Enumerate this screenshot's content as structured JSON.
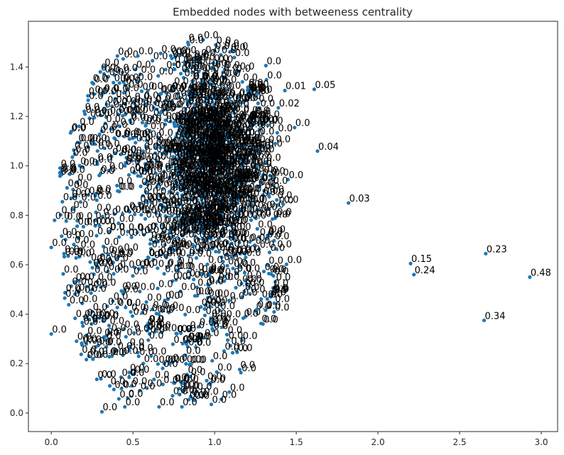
{
  "chart_data": {
    "type": "scatter",
    "title": "Embedded nodes with betweeness centrality",
    "xlabel": "",
    "ylabel": "",
    "xlim": [
      -0.14,
      3.1
    ],
    "ylim": [
      -0.075,
      1.585
    ],
    "x_ticks": [
      "0.0",
      "0.5",
      "1.0",
      "1.5",
      "2.0",
      "2.5",
      "3.0"
    ],
    "y_ticks": [
      "0.0",
      "0.2",
      "0.4",
      "0.6",
      "0.8",
      "1.0",
      "1.2",
      "1.4"
    ],
    "grid": false,
    "legend": "none",
    "point_color": "#1f77b4",
    "labeled_points": [
      {
        "x": 0.93,
        "y": 1.51,
        "label": "0.0"
      },
      {
        "x": 0.53,
        "y": 1.445,
        "label": "0.0"
      },
      {
        "x": 0.67,
        "y": 1.455,
        "label": "0.0"
      },
      {
        "x": 0.84,
        "y": 1.49,
        "label": "0.0"
      },
      {
        "x": 1.17,
        "y": 1.34,
        "label": "0.0"
      },
      {
        "x": 1.43,
        "y": 1.305,
        "label": "0.01"
      },
      {
        "x": 1.61,
        "y": 1.31,
        "label": "0.05"
      },
      {
        "x": 1.26,
        "y": 1.29,
        "label": "0.0"
      },
      {
        "x": 1.39,
        "y": 1.235,
        "label": "0.02"
      },
      {
        "x": 1.49,
        "y": 1.155,
        "label": "0.0"
      },
      {
        "x": 1.63,
        "y": 1.06,
        "label": "0.04"
      },
      {
        "x": 1.82,
        "y": 0.85,
        "label": "0.03"
      },
      {
        "x": 1.42,
        "y": 0.845,
        "label": "0.0"
      },
      {
        "x": 2.66,
        "y": 0.645,
        "label": "0.23"
      },
      {
        "x": 2.2,
        "y": 0.605,
        "label": "0.15"
      },
      {
        "x": 2.22,
        "y": 0.56,
        "label": "0.24"
      },
      {
        "x": 2.93,
        "y": 0.55,
        "label": "0.48"
      },
      {
        "x": 2.65,
        "y": 0.375,
        "label": "0.34"
      },
      {
        "x": 1.36,
        "y": 0.555,
        "label": "0.0"
      },
      {
        "x": 1.26,
        "y": 0.42,
        "label": "0.0"
      },
      {
        "x": 0.31,
        "y": 0.005,
        "label": "0.0"
      },
      {
        "x": 0.45,
        "y": 0.025,
        "label": "0.0"
      },
      {
        "x": 0.66,
        "y": 0.025,
        "label": "0.0"
      },
      {
        "x": 0.8,
        "y": 0.025,
        "label": "0.0"
      },
      {
        "x": 0.98,
        "y": 0.035,
        "label": "0.0"
      },
      {
        "x": 1.09,
        "y": 0.085,
        "label": "0.0"
      },
      {
        "x": 0.17,
        "y": 1.16,
        "label": "0.0"
      },
      {
        "x": 0.0,
        "y": 0.67,
        "label": "0.0"
      },
      {
        "x": 0.02,
        "y": 0.78,
        "label": "0.0"
      },
      {
        "x": 0.0,
        "y": 0.32,
        "label": "0.0"
      }
    ],
    "unlabeled_cluster": {
      "label": "0.0",
      "x_range": [
        0.0,
        1.5
      ],
      "y_range": [
        0.0,
        1.52
      ],
      "center": [
        0.95,
        1.0
      ]
    }
  }
}
